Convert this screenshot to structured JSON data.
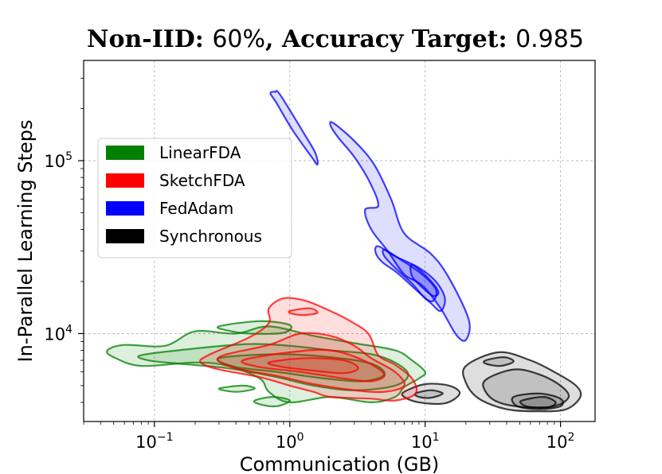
{
  "chart_data": {
    "type": "contour",
    "title_prefix": "Non-IID: ",
    "title_value1": "60%",
    "title_mid": ", Accuracy Target: ",
    "title_value2": "0.985",
    "xlabel": "Communication (GB)",
    "ylabel": "In-Parallel Learning Steps",
    "xscale": "log",
    "yscale": "log",
    "xlim": [
      0.03,
      180
    ],
    "ylim": [
      3100,
      380000
    ],
    "grid": true,
    "xticks": [
      {
        "value": 0.1,
        "base": "10",
        "exp": "−1"
      },
      {
        "value": 1,
        "base": "10",
        "exp": "0"
      },
      {
        "value": 10,
        "base": "10",
        "exp": "1"
      },
      {
        "value": 100,
        "base": "10",
        "exp": "2"
      }
    ],
    "yticks": [
      {
        "value": 10000,
        "base": "10",
        "exp": "4"
      },
      {
        "value": 100000,
        "base": "10",
        "exp": "5"
      }
    ],
    "legend_position": "upper-left",
    "legend": [
      {
        "label": "LinearFDA",
        "color": "#008000"
      },
      {
        "label": "SketchFDA",
        "color": "#ff0000"
      },
      {
        "label": "FedAdam",
        "color": "#0000ff"
      },
      {
        "label": "Synchronous",
        "color": "#000000"
      }
    ],
    "series": [
      {
        "name": "Synchronous",
        "color": "#000000",
        "contours": [
          [
            [
              20,
              6500
            ],
            [
              35,
              7800
            ],
            [
              60,
              7000
            ],
            [
              90,
              6000
            ],
            [
              130,
              5000
            ],
            [
              140,
              4300
            ],
            [
              110,
              3650
            ],
            [
              70,
              3550
            ],
            [
              40,
              3650
            ],
            [
              25,
              4200
            ],
            [
              20,
              5200
            ]
          ],
          [
            [
              28,
              5400
            ],
            [
              45,
              6200
            ],
            [
              70,
              5800
            ],
            [
              100,
              5000
            ],
            [
              115,
              4300
            ],
            [
              90,
              3800
            ],
            [
              55,
              3750
            ],
            [
              35,
              4000
            ],
            [
              28,
              4600
            ]
          ],
          [
            [
              45,
              4300
            ],
            [
              70,
              4500
            ],
            [
              100,
              4200
            ],
            [
              100,
              3800
            ],
            [
              70,
              3650
            ],
            [
              48,
              3800
            ]
          ],
          [
            [
              52,
              4100
            ],
            [
              75,
              4300
            ],
            [
              92,
              4000
            ],
            [
              82,
              3760
            ],
            [
              60,
              3760
            ],
            [
              52,
              3900
            ]
          ],
          [
            [
              28,
              7000
            ],
            [
              38,
              7300
            ],
            [
              45,
              6900
            ],
            [
              36,
              6500
            ],
            [
              28,
              6700
            ]
          ],
          [
            [
              7,
              4600
            ],
            [
              10,
              5100
            ],
            [
              15,
              5000
            ],
            [
              18,
              4500
            ],
            [
              14,
              3950
            ],
            [
              9,
              4000
            ],
            [
              7,
              4300
            ]
          ],
          [
            [
              8.5,
              4500
            ],
            [
              11,
              4700
            ],
            [
              13.5,
              4500
            ],
            [
              11,
              4250
            ],
            [
              9,
              4300
            ]
          ]
        ]
      },
      {
        "name": "FedAdam",
        "color": "#0000ff",
        "contours": [
          [
            [
              0.78,
              250000
            ],
            [
              0.85,
              240000
            ],
            [
              1.3,
              140000
            ],
            [
              1.55,
              110000
            ],
            [
              1.6,
              95000
            ],
            [
              1.45,
              105000
            ],
            [
              1.05,
              150000
            ],
            [
              0.8,
              215000
            ],
            [
              0.72,
              245000
            ]
          ],
          [
            [
              2.1,
              165000
            ],
            [
              3.0,
              130000
            ],
            [
              4.2,
              95000
            ],
            [
              5.6,
              60000
            ],
            [
              7,
              38000
            ],
            [
              11,
              29000
            ],
            [
              15,
              21000
            ],
            [
              21,
              12000
            ],
            [
              20,
              9200
            ],
            [
              17,
              9800
            ],
            [
              13,
              14000
            ],
            [
              9.5,
              19000
            ],
            [
              7,
              22000
            ],
            [
              5.3,
              30000
            ],
            [
              4.0,
              40000
            ],
            [
              3.6,
              52000
            ],
            [
              4.5,
              55000
            ],
            [
              3.9,
              75000
            ],
            [
              3.0,
              105000
            ],
            [
              2.3,
              135000
            ],
            [
              2.0,
              160000
            ]
          ],
          [
            [
              4.5,
              32000
            ],
            [
              6,
              28000
            ],
            [
              9,
              24000
            ],
            [
              12,
              20000
            ],
            [
              14,
              16000
            ],
            [
              13,
              13500
            ],
            [
              11,
              15000
            ],
            [
              8.5,
              18000
            ],
            [
              6.2,
              22500
            ],
            [
              4.8,
              26000
            ],
            [
              4.3,
              29500
            ]
          ],
          [
            [
              5,
              30500
            ],
            [
              6.5,
              27000
            ],
            [
              9.5,
              22000
            ],
            [
              12,
              18000
            ],
            [
              11.5,
              15500
            ],
            [
              10,
              16000
            ],
            [
              8,
              19500
            ],
            [
              6,
              24000
            ],
            [
              5,
              28000
            ]
          ],
          [
            [
              8,
              25000
            ],
            [
              10.5,
              21000
            ],
            [
              12.5,
              17500
            ],
            [
              11.5,
              16500
            ],
            [
              9.5,
              18500
            ],
            [
              8,
              21500
            ]
          ]
        ]
      },
      {
        "name": "LinearFDA",
        "color": "#008000",
        "contours": [
          [
            [
              0.045,
              8000
            ],
            [
              0.06,
              8600
            ],
            [
              0.12,
              8500
            ],
            [
              0.2,
              10300
            ],
            [
              0.4,
              10000
            ],
            [
              0.7,
              11000
            ],
            [
              1.5,
              9700
            ],
            [
              3,
              8800
            ],
            [
              6,
              8000
            ],
            [
              8,
              7000
            ],
            [
              10,
              6000
            ],
            [
              9,
              5500
            ],
            [
              7,
              4900
            ],
            [
              6,
              4300
            ],
            [
              4,
              4000
            ],
            [
              2,
              4300
            ],
            [
              1,
              4000
            ],
            [
              0.7,
              4600
            ],
            [
              0.6,
              5500
            ],
            [
              0.35,
              6500
            ],
            [
              0.2,
              6800
            ],
            [
              0.08,
              6500
            ],
            [
              0.05,
              7300
            ]
          ],
          [
            [
              0.08,
              7500
            ],
            [
              0.2,
              8200
            ],
            [
              0.5,
              8700
            ],
            [
              1,
              8500
            ],
            [
              2,
              8000
            ],
            [
              4,
              7600
            ],
            [
              6,
              6800
            ],
            [
              7.5,
              5800
            ],
            [
              6,
              5000
            ],
            [
              3,
              4700
            ],
            [
              1.5,
              5000
            ],
            [
              0.8,
              5600
            ],
            [
              0.35,
              6300
            ],
            [
              0.15,
              6700
            ],
            [
              0.09,
              7000
            ]
          ],
          [
            [
              0.3,
              7200
            ],
            [
              0.8,
              7600
            ],
            [
              2,
              7300
            ],
            [
              4,
              6700
            ],
            [
              5,
              5800
            ],
            [
              3.5,
              5300
            ],
            [
              1.8,
              5500
            ],
            [
              0.8,
              6000
            ],
            [
              0.4,
              6400
            ]
          ],
          [
            [
              0.3,
              11000
            ],
            [
              0.6,
              11800
            ],
            [
              1,
              11200
            ],
            [
              0.9,
              10100
            ],
            [
              0.5,
              10000
            ],
            [
              0.35,
              10400
            ]
          ],
          [
            [
              0.55,
              4100
            ],
            [
              0.75,
              4300
            ],
            [
              1,
              4100
            ],
            [
              0.8,
              3800
            ],
            [
              0.6,
              3900
            ]
          ],
          [
            [
              0.3,
              4800
            ],
            [
              0.45,
              5000
            ],
            [
              0.55,
              4800
            ],
            [
              0.4,
              4600
            ]
          ]
        ]
      },
      {
        "name": "SketchFDA",
        "color": "#ff0000",
        "contours": [
          [
            [
              0.25,
              7500
            ],
            [
              0.5,
              9500
            ],
            [
              0.7,
              11500
            ],
            [
              0.7,
              14000
            ],
            [
              0.9,
              16000
            ],
            [
              1.3,
              15500
            ],
            [
              2,
              13500
            ],
            [
              2.7,
              12000
            ],
            [
              3.8,
              10000
            ],
            [
              4.5,
              7500
            ],
            [
              6,
              6600
            ],
            [
              8,
              5500
            ],
            [
              8.5,
              4500
            ],
            [
              6,
              4100
            ],
            [
              4,
              4200
            ],
            [
              2,
              4300
            ],
            [
              1.5,
              4600
            ],
            [
              1,
              5000
            ],
            [
              0.6,
              5600
            ],
            [
              0.3,
              6200
            ],
            [
              0.22,
              6800
            ]
          ],
          [
            [
              0.3,
              7300
            ],
            [
              0.7,
              8600
            ],
            [
              1.2,
              10000
            ],
            [
              2,
              9700
            ],
            [
              3,
              8500
            ],
            [
              4,
              7200
            ],
            [
              6,
              6000
            ],
            [
              7,
              5000
            ],
            [
              5,
              4600
            ],
            [
              3,
              4700
            ],
            [
              1.5,
              5100
            ],
            [
              0.8,
              5700
            ],
            [
              0.4,
              6300
            ]
          ],
          [
            [
              0.45,
              7000
            ],
            [
              1,
              7800
            ],
            [
              2,
              8000
            ],
            [
              3.5,
              7000
            ],
            [
              5,
              5800
            ],
            [
              4,
              5300
            ],
            [
              2.5,
              5500
            ],
            [
              1.2,
              6000
            ],
            [
              0.6,
              6400
            ]
          ],
          [
            [
              0.7,
              6800
            ],
            [
              1.3,
              7200
            ],
            [
              2.5,
              7000
            ],
            [
              3.2,
              6300
            ],
            [
              2.5,
              5900
            ],
            [
              1.5,
              6100
            ],
            [
              0.9,
              6400
            ]
          ],
          [
            [
              1,
              13500
            ],
            [
              1.4,
              14000
            ],
            [
              1.6,
              13200
            ],
            [
              1.3,
              12800
            ],
            [
              1.05,
              13000
            ]
          ]
        ]
      }
    ]
  }
}
